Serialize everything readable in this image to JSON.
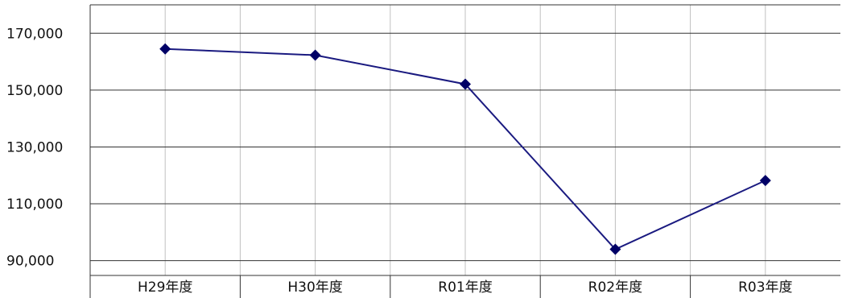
{
  "chart_data": {
    "type": "line",
    "title": "",
    "xlabel": "",
    "ylabel": "",
    "categories": [
      "H29年度",
      "H30年度",
      "R01年度",
      "R02年度",
      "R03年度"
    ],
    "series": [
      {
        "values": [
          164500,
          162300,
          152100,
          94000,
          118200
        ]
      }
    ],
    "ylim": [
      84800,
      180000
    ],
    "yticks": [
      90000,
      110000,
      130000,
      150000,
      170000
    ],
    "ytick_labels": [
      "90,000",
      "110,000",
      "130,000",
      "150,000",
      "170,000"
    ],
    "grid": true,
    "legend": "none",
    "colors": {
      "line": "#1a1a80",
      "marker": "#000066",
      "h_grid": "#333333",
      "v_grid": "#c0c0c0",
      "axis": "#333333"
    },
    "marker": "diamond"
  }
}
